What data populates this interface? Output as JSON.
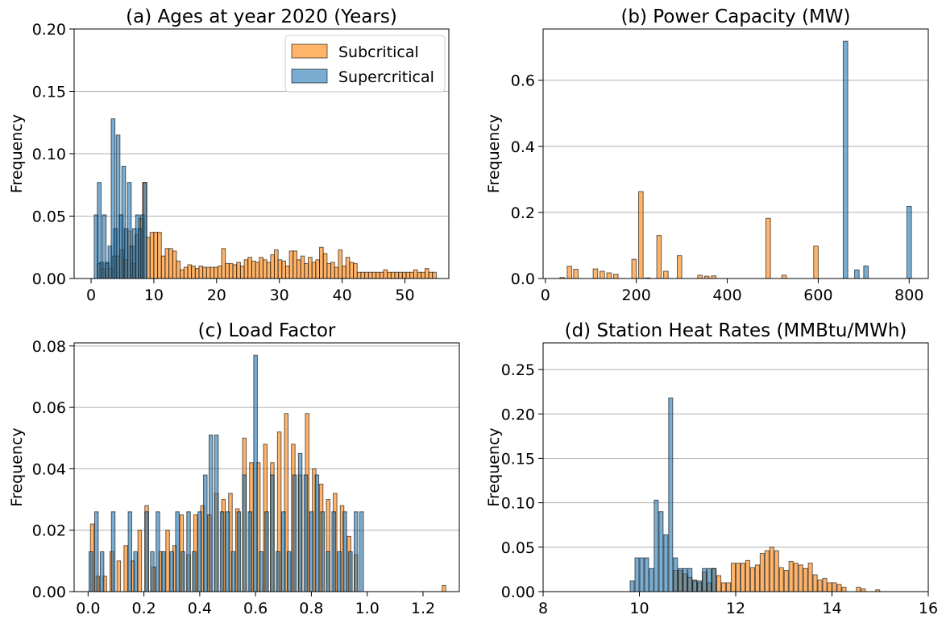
{
  "colors": {
    "subcritical": "#ff8c1a",
    "supercritical": "#1f77b4",
    "edge": "#000000",
    "grid": "#b0b0b0"
  },
  "legend": {
    "entries": [
      "Subcritical",
      "Supercritical"
    ],
    "placement": "upper right"
  },
  "chart_data": [
    {
      "type": "bar",
      "title": "(a) Ages at year 2020 (Years)",
      "ylabel": "Frequency",
      "xlim": [
        -2.7,
        57
      ],
      "ylim": [
        0,
        0.2
      ],
      "xticks": [
        0,
        10,
        20,
        30,
        40,
        50
      ],
      "xtick_labels": [
        "0",
        "10",
        "20",
        "30",
        "40",
        "50"
      ],
      "yticks": [
        0,
        0.05,
        0.1,
        0.15,
        0.2
      ],
      "ytick_labels": [
        "0.00",
        "0.05",
        "0.10",
        "0.15",
        "0.20"
      ],
      "grid": "y",
      "bar_width": 0.6,
      "series": [
        {
          "name": "Subcritical",
          "x": [
            1.3,
            1.9,
            2.5,
            3.1,
            3.7,
            4.3,
            4.9,
            5.5,
            6.1,
            6.7,
            7.3,
            7.9,
            8.5,
            9.1,
            9.7,
            10.3,
            10.9,
            11.5,
            12.1,
            12.7,
            13.3,
            13.9,
            14.5,
            15.1,
            15.7,
            16.3,
            16.9,
            17.5,
            18.1,
            18.7,
            19.3,
            19.9,
            20.5,
            21.1,
            21.7,
            22.3,
            22.9,
            23.5,
            24.1,
            24.7,
            25.3,
            25.9,
            26.5,
            27.1,
            27.7,
            28.3,
            28.9,
            29.5,
            30.1,
            30.7,
            31.3,
            31.9,
            32.5,
            33.1,
            33.7,
            34.3,
            34.9,
            35.5,
            36.1,
            36.7,
            37.3,
            37.9,
            38.5,
            39.1,
            39.7,
            40.3,
            40.9,
            41.5,
            42.1,
            42.7,
            43.3,
            43.9,
            44.5,
            45.1,
            45.7,
            46.3,
            46.9,
            47.5,
            48.1,
            48.7,
            49.3,
            49.9,
            50.5,
            51.1,
            51.7,
            52.3,
            52.9,
            53.5,
            54.1,
            54.7
          ],
          "values": [
            0.012,
            0.008,
            0.012,
            0.008,
            0.018,
            0.018,
            0.023,
            0.015,
            0.038,
            0.012,
            0.035,
            0.048,
            0.077,
            0.033,
            0.037,
            0.037,
            0.037,
            0.018,
            0.024,
            0.024,
            0.022,
            0.014,
            0.007,
            0.009,
            0.011,
            0.01,
            0.008,
            0.01,
            0.009,
            0.009,
            0.009,
            0.009,
            0.01,
            0.024,
            0.012,
            0.012,
            0.011,
            0.013,
            0.01,
            0.015,
            0.017,
            0.014,
            0.013,
            0.017,
            0.015,
            0.013,
            0.019,
            0.023,
            0.015,
            0.014,
            0.01,
            0.022,
            0.022,
            0.015,
            0.018,
            0.012,
            0.017,
            0.013,
            0.015,
            0.025,
            0.02,
            0.012,
            0.013,
            0.009,
            0.023,
            0.01,
            0.017,
            0.013,
            0.012,
            0.005,
            0.005,
            0.005,
            0.005,
            0.005,
            0.005,
            0.005,
            0.007,
            0.005,
            0.005,
            0.005,
            0.005,
            0.005,
            0.005,
            0.005,
            0.007,
            0.005,
            0.005,
            0.008,
            0.005,
            0.005
          ]
        },
        {
          "name": "Supercritical",
          "x": [
            0.8,
            1.3,
            1.7,
            2.1,
            2.6,
            3.0,
            3.5,
            3.9,
            4.3,
            4.8,
            5.2,
            5.6,
            6.1,
            6.5,
            6.9,
            7.4,
            7.8,
            8.2,
            8.6
          ],
          "values": [
            0.051,
            0.077,
            0.013,
            0.051,
            0.013,
            0.026,
            0.128,
            0.04,
            0.115,
            0.051,
            0.09,
            0.04,
            0.077,
            0.026,
            0.04,
            0.051,
            0.04,
            0.051,
            0.077
          ]
        }
      ]
    },
    {
      "type": "bar",
      "title": "(b) Power Capacity (MW)",
      "ylabel": "Frequency",
      "xlim": [
        -5,
        842
      ],
      "ylim": [
        0,
        0.755
      ],
      "xticks": [
        0,
        200,
        400,
        600,
        800
      ],
      "xtick_labels": [
        "0",
        "200",
        "400",
        "600",
        "800"
      ],
      "yticks": [
        0,
        0.2,
        0.4,
        0.6
      ],
      "ytick_labels": [
        "0.0",
        "0.2",
        "0.4",
        "0.6"
      ],
      "grid": "y",
      "bar_width": 10,
      "series": [
        {
          "name": "Subcritical",
          "x": [
            37,
            53,
            67,
            110,
            125,
            140,
            155,
            195,
            210,
            225,
            250,
            265,
            295,
            340,
            355,
            370,
            490,
            525,
            595
          ],
          "values": [
            0.003,
            0.037,
            0.028,
            0.029,
            0.022,
            0.017,
            0.013,
            0.058,
            0.263,
            0.002,
            0.13,
            0.022,
            0.069,
            0.01,
            0.007,
            0.008,
            0.182,
            0.01,
            0.098
          ]
        },
        {
          "name": "Supercritical",
          "x": [
            660,
            685,
            705,
            800
          ],
          "values": [
            0.718,
            0.026,
            0.038,
            0.218
          ]
        }
      ]
    },
    {
      "type": "bar",
      "title": "(c) Load Factor",
      "ylabel": "Frequency",
      "xlim": [
        -0.05,
        1.33
      ],
      "ylim": [
        0,
        0.081
      ],
      "xticks": [
        0,
        0.2,
        0.4,
        0.6,
        0.8,
        1.0,
        1.2
      ],
      "xtick_labels": [
        "0.0",
        "0.2",
        "0.4",
        "0.6",
        "0.8",
        "1.0",
        "1.2"
      ],
      "yticks": [
        0,
        0.02,
        0.04,
        0.06,
        0.08
      ],
      "ytick_labels": [
        "0.00",
        "0.02",
        "0.04",
        "0.06",
        "0.08"
      ],
      "grid": "y",
      "bar_width": 0.013,
      "series": [
        {
          "name": "Subcritical",
          "x": [
            0.015,
            0.035,
            0.06,
            0.085,
            0.11,
            0.135,
            0.16,
            0.185,
            0.21,
            0.235,
            0.26,
            0.285,
            0.31,
            0.335,
            0.36,
            0.385,
            0.41,
            0.435,
            0.46,
            0.485,
            0.51,
            0.535,
            0.56,
            0.585,
            0.61,
            0.635,
            0.66,
            0.685,
            0.71,
            0.735,
            0.76,
            0.785,
            0.81,
            0.835,
            0.86,
            0.885,
            0.91,
            0.935,
            0.96,
            1.275
          ],
          "values": [
            0.022,
            0.005,
            0.005,
            0.013,
            0.01,
            0.015,
            0.01,
            0.02,
            0.028,
            0.008,
            0.013,
            0.02,
            0.015,
            0.025,
            0.012,
            0.025,
            0.028,
            0.025,
            0.032,
            0.03,
            0.032,
            0.027,
            0.05,
            0.042,
            0.042,
            0.048,
            0.042,
            0.052,
            0.058,
            0.048,
            0.038,
            0.058,
            0.04,
            0.035,
            0.03,
            0.032,
            0.028,
            0.018,
            0.012,
            0.002
          ]
        },
        {
          "name": "Supercritical",
          "x": [
            0.01,
            0.03,
            0.05,
            0.09,
            0.15,
            0.17,
            0.21,
            0.23,
            0.25,
            0.27,
            0.3,
            0.32,
            0.34,
            0.36,
            0.38,
            0.4,
            0.42,
            0.44,
            0.46,
            0.48,
            0.5,
            0.52,
            0.54,
            0.56,
            0.58,
            0.6,
            0.62,
            0.64,
            0.66,
            0.68,
            0.7,
            0.72,
            0.74,
            0.76,
            0.78,
            0.8,
            0.82,
            0.84,
            0.86,
            0.88,
            0.9,
            0.92,
            0.94,
            0.96,
            0.98
          ],
          "values": [
            0.013,
            0.026,
            0.013,
            0.026,
            0.026,
            0.013,
            0.026,
            0.013,
            0.026,
            0.013,
            0.013,
            0.026,
            0.013,
            0.026,
            0.013,
            0.026,
            0.038,
            0.051,
            0.051,
            0.026,
            0.026,
            0.013,
            0.026,
            0.038,
            0.026,
            0.077,
            0.013,
            0.026,
            0.038,
            0.013,
            0.026,
            0.013,
            0.038,
            0.045,
            0.038,
            0.026,
            0.038,
            0.026,
            0.013,
            0.026,
            0.013,
            0.026,
            0.013,
            0.026,
            0.026
          ]
        }
      ]
    },
    {
      "type": "bar",
      "title": "(d) Station Heat Rates (MMBtu/MWh)",
      "ylabel": "Frequency",
      "xlim": [
        8,
        16
      ],
      "ylim": [
        0,
        0.28
      ],
      "xticks": [
        8,
        10,
        12,
        14,
        16
      ],
      "xtick_labels": [
        "8",
        "10",
        "12",
        "14",
        "16"
      ],
      "yticks": [
        0,
        0.05,
        0.1,
        0.15,
        0.2,
        0.25
      ],
      "ytick_labels": [
        "0.00",
        "0.05",
        "0.10",
        "0.15",
        "0.20",
        "0.25"
      ],
      "grid": "y",
      "bar_width": 0.085,
      "series": [
        {
          "name": "Subcritical",
          "x": [
            10.75,
            10.85,
            10.95,
            11.05,
            11.15,
            11.25,
            11.35,
            11.45,
            11.55,
            11.65,
            11.75,
            11.85,
            11.95,
            12.05,
            12.15,
            12.25,
            12.35,
            12.45,
            12.55,
            12.65,
            12.75,
            12.85,
            12.95,
            13.05,
            13.15,
            13.25,
            13.35,
            13.45,
            13.55,
            13.65,
            13.75,
            13.85,
            13.95,
            14.05,
            14.15,
            14.25,
            14.55,
            14.65,
            14.95
          ],
          "values": [
            0.024,
            0.024,
            0.02,
            0.016,
            0.013,
            0.01,
            0.022,
            0.01,
            0.026,
            0.018,
            0.01,
            0.01,
            0.032,
            0.032,
            0.032,
            0.035,
            0.027,
            0.03,
            0.043,
            0.046,
            0.05,
            0.046,
            0.027,
            0.024,
            0.034,
            0.032,
            0.03,
            0.026,
            0.032,
            0.019,
            0.013,
            0.015,
            0.01,
            0.01,
            0.008,
            0.005,
            0.005,
            0.003,
            0.002
          ]
        },
        {
          "name": "Supercritical",
          "x": [
            9.85,
            9.95,
            10.05,
            10.15,
            10.25,
            10.35,
            10.45,
            10.55,
            10.65,
            10.75,
            10.85,
            10.95,
            11.05,
            11.15,
            11.25,
            11.35,
            11.45,
            11.55
          ],
          "values": [
            0.012,
            0.038,
            0.038,
            0.038,
            0.026,
            0.103,
            0.09,
            0.064,
            0.218,
            0.038,
            0.026,
            0.026,
            0.026,
            0.012,
            0.012,
            0.026,
            0.026,
            0.026
          ]
        }
      ]
    }
  ]
}
